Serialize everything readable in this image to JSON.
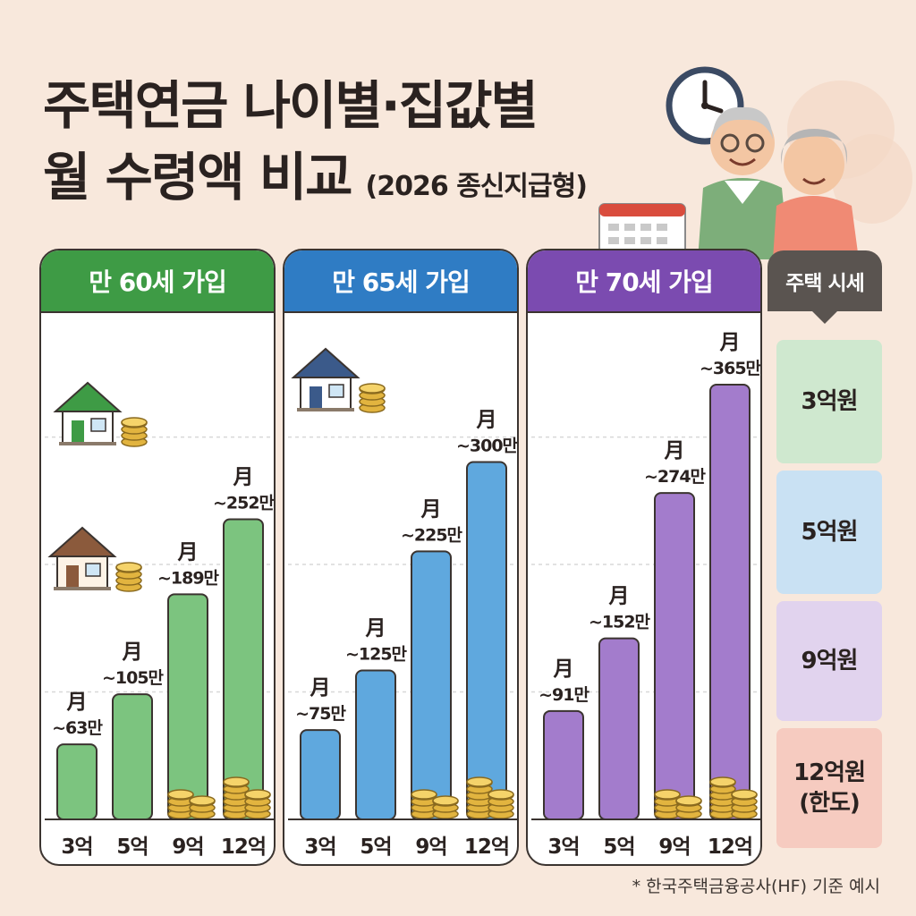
{
  "title": {
    "line1": "주택연금 나이별·집값별",
    "line2": "월 수령액 비교",
    "subtitle": "(2026 종신지급형)"
  },
  "colors": {
    "background": "#f8e8dc",
    "age60": "#3e9b45",
    "age60_bar": "#7cc47f",
    "age65": "#2f7cc4",
    "age65_bar": "#5fa8de",
    "age70": "#7b4bb0",
    "age70_bar": "#a37ccc"
  },
  "icons": [
    "green-house-icon",
    "brown-house-icon",
    "blue-house-icon",
    "coin-stack-icon",
    "clock-icon",
    "calendar-icon",
    "elderly-couple-icon"
  ],
  "side": {
    "header": "주택 시세",
    "rows": [
      {
        "label": "3억원",
        "color": "#cfe8cf"
      },
      {
        "label": "5억원",
        "color": "#c9e1f3"
      },
      {
        "label": "9억원",
        "color": "#e1d3ee"
      },
      {
        "label": "12억원",
        "label2": "(한도)",
        "color": "#f6cbc0"
      }
    ]
  },
  "note": "* 한국주택금융공사(HF) 기준 예시",
  "chart_data": [
    {
      "type": "bar",
      "title": "만 60세 가입",
      "categories": [
        "3억",
        "5억",
        "9억",
        "12억"
      ],
      "values": [
        63,
        105,
        189,
        252
      ],
      "value_labels": [
        "~63만",
        "~105만",
        "~189만",
        "~252만"
      ],
      "unit_label": "月",
      "ylim": [
        0,
        380
      ],
      "grid": true
    },
    {
      "type": "bar",
      "title": "만 65세 가입",
      "categories": [
        "3억",
        "5억",
        "9억",
        "12억"
      ],
      "values": [
        75,
        125,
        225,
        300
      ],
      "value_labels": [
        "~75만",
        "~125만",
        "~225만",
        "~300만"
      ],
      "unit_label": "月",
      "ylim": [
        0,
        380
      ],
      "grid": true
    },
    {
      "type": "bar",
      "title": "만 70세 가입",
      "categories": [
        "3억",
        "5억",
        "9억",
        "12억"
      ],
      "values": [
        91,
        152,
        274,
        365
      ],
      "value_labels": [
        "~91만",
        "~152만",
        "~274만",
        "~365만"
      ],
      "unit_label": "月",
      "ylim": [
        0,
        380
      ],
      "grid": true
    }
  ]
}
